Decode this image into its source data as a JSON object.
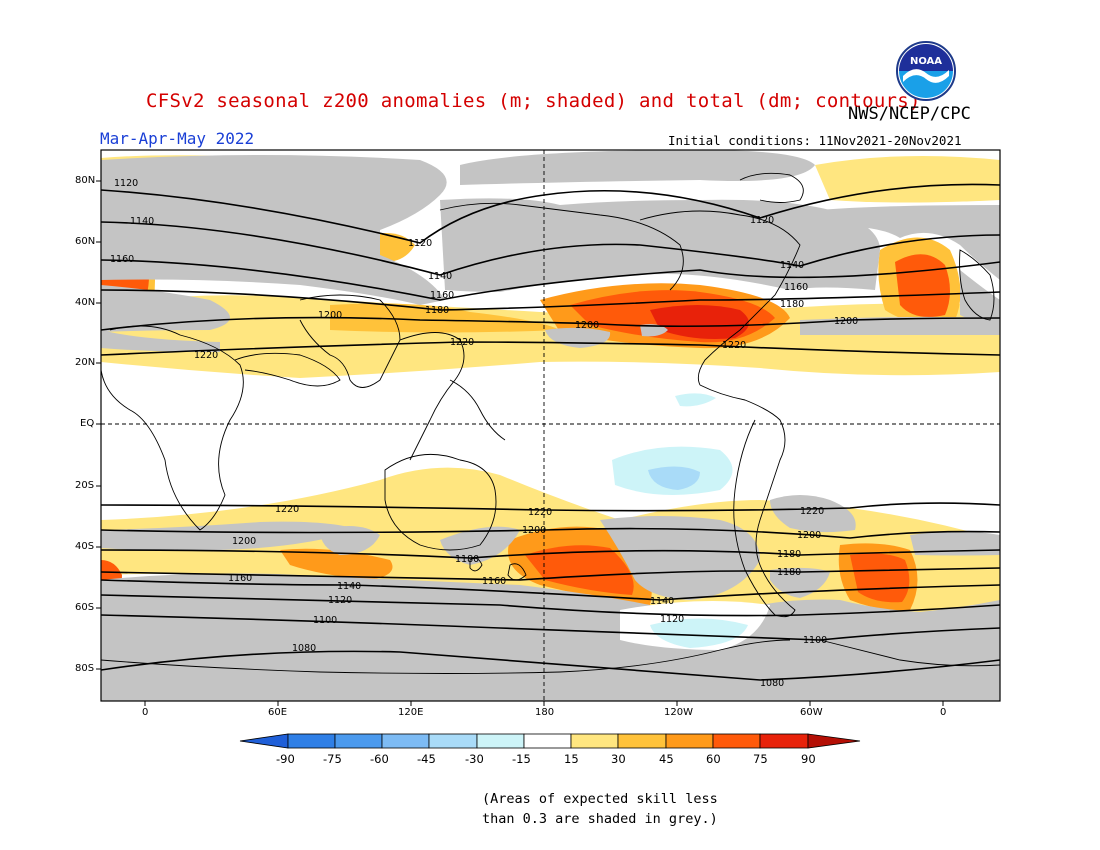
{
  "header": {
    "title": "CFSv2 seasonal z200 anomalies (m; shaded) and total (dm; contours)",
    "org": "NWS/NCEP/CPC",
    "period": "Mar-Apr-May 2022",
    "initial_conditions": "Initial conditions: 11Nov2021-20Nov2021",
    "logo_text": "NOAA"
  },
  "map": {
    "lat_labels": [
      "80N",
      "60N",
      "40N",
      "20N",
      "EQ",
      "20S",
      "40S",
      "60S",
      "80S"
    ],
    "lon_labels": [
      "0",
      "60E",
      "120E",
      "180",
      "120W",
      "60W",
      "0"
    ],
    "contour_labels": [
      "1080",
      "1100",
      "1120",
      "1140",
      "1160",
      "1180",
      "1200",
      "1220"
    ]
  },
  "colorbar": {
    "labels": [
      "-90",
      "-75",
      "-60",
      "-45",
      "-30",
      "-15",
      "15",
      "30",
      "45",
      "60",
      "75",
      "90"
    ],
    "colors": [
      "#1f5fd8",
      "#2f7fe6",
      "#4b9aee",
      "#7dbbf4",
      "#a9dbf8",
      "#cdf4f8",
      "#ffffff",
      "#ffe680",
      "#ffc23a",
      "#ff9a1a",
      "#ff5a0a",
      "#e8220a",
      "#b40f05"
    ]
  },
  "note": {
    "line1": "(Areas of expected skill less",
    "line2": "than 0.3 are shaded in grey.)"
  },
  "colors": {
    "grey_low_skill": "#c4c4c4",
    "title": "#d40000",
    "period": "#1a3fd6"
  }
}
